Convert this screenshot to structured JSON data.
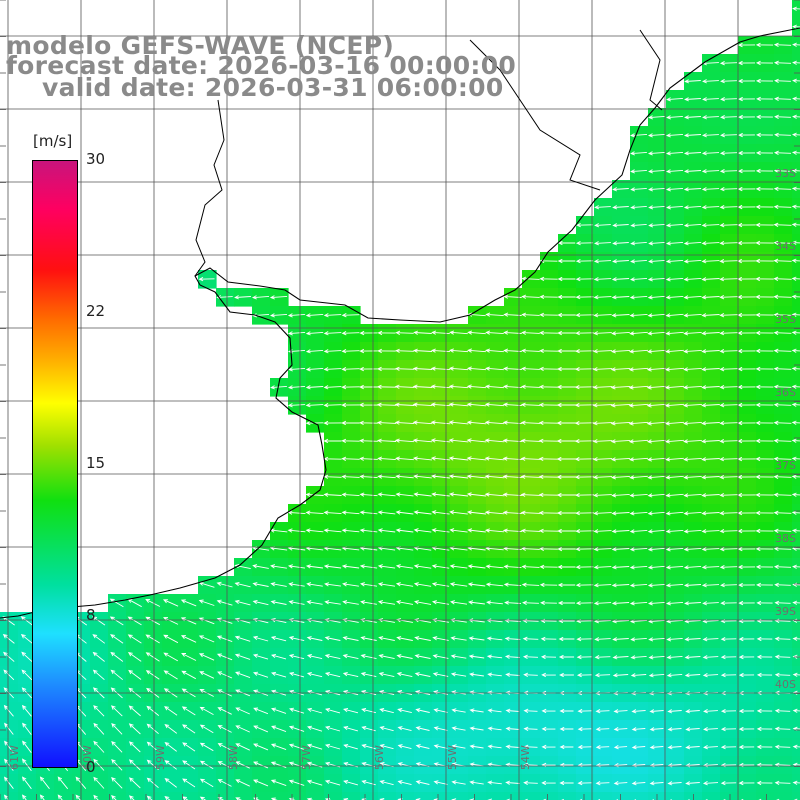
{
  "header": {
    "model_line": "modelo GEFS-WAVE (NCEP)",
    "forecast_line": "forecast date: 2026-03-16 00:00:00",
    "valid_line": "valid date: 2026-03-31 06:00:00"
  },
  "colorbar": {
    "unit": "[m/s]",
    "ticks": [
      "30",
      "22",
      "15",
      "8",
      "0"
    ],
    "colors": [
      "#1010ff",
      "#1e90ff",
      "#1ee0ff",
      "#00e0a0",
      "#10e010",
      "#a0e000",
      "#ffff00",
      "#ffb000",
      "#ff6a00",
      "#ff1010",
      "#ff0060",
      "#c8147c"
    ]
  },
  "map": {
    "variable": "wind speed",
    "units": "m/s",
    "background_color": "#ffffff",
    "land_color": "#ffffff",
    "grid_color": "#555555",
    "arrow_color": "#ffffff",
    "lat_labels": [
      "33S",
      "34S",
      "35S",
      "36S",
      "37S",
      "38S",
      "39S",
      "40S"
    ],
    "lon_labels": [
      "61W",
      "60W",
      "59W",
      "58W",
      "57W",
      "56W",
      "55W",
      "54W"
    ]
  }
}
